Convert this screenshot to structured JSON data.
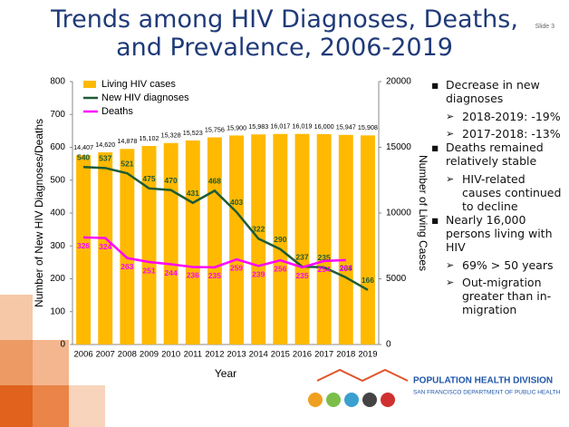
{
  "slide": {
    "title": "Trends among HIV Diagnoses, Deaths, and Prevalence, 2006-2019",
    "number": "Slide 3"
  },
  "chart_data": {
    "type": "combo",
    "x_label": "Year",
    "y_label": "Number of New HIV Diagnoses/Deaths",
    "y2_label": "Number of Living Cases",
    "categories": [
      "2006",
      "2007",
      "2008",
      "2009",
      "2010",
      "2011",
      "2012",
      "2013",
      "2014",
      "2015",
      "2016",
      "2017",
      "2018",
      "2019"
    ],
    "series": [
      {
        "name": "Living HIV cases",
        "type": "bar",
        "axis": "y2",
        "color": "#ffb900",
        "values": [
          14407,
          14620,
          14878,
          15102,
          15328,
          15523,
          15756,
          15900,
          15983,
          16017,
          16019,
          16000,
          15947,
          15908
        ],
        "value_labels": [
          "14,407",
          "14,620",
          "14,878",
          "15,102",
          "15,328",
          "15,523",
          "15,756",
          "15,900",
          "15,983",
          "16,017",
          "16,019",
          "16,000",
          "15,947",
          "15,908"
        ]
      },
      {
        "name": "New HIV diagnoses",
        "type": "line",
        "color": "#1d5b35",
        "values": [
          540,
          537,
          521,
          475,
          470,
          431,
          468,
          403,
          322,
          290,
          237,
          235,
          204,
          166
        ]
      },
      {
        "name": "Deaths",
        "type": "line",
        "color": "#ff00ff",
        "values": [
          326,
          324,
          263,
          251,
          244,
          236,
          235,
          259,
          239,
          256,
          235,
          254,
          257,
          null
        ]
      }
    ],
    "ylim": [
      0,
      800
    ],
    "yticks": [
      0,
      100,
      200,
      300,
      400,
      500,
      600,
      700,
      800
    ],
    "y2lim": [
      0,
      20000
    ],
    "y2ticks": [
      0,
      5000,
      10000,
      15000,
      20000
    ],
    "legend": "top-left"
  },
  "bullets": [
    {
      "text": "Decrease in new diagnoses",
      "sub": [
        "2018-2019: -19%",
        "2017-2018: -13%"
      ]
    },
    {
      "text": "Deaths remained relatively stable",
      "sub": [
        "HIV-related causes continued to decline"
      ]
    },
    {
      "text": "Nearly 16,000 persons living with HIV",
      "sub": [
        "69% > 50 years",
        "Out-migration greater than in-migration"
      ]
    }
  ],
  "logo": {
    "name": "POPULATION HEALTH DIVISION",
    "department": "SAN FRANCISCO DEPARTMENT OF PUBLIC HEALTH"
  }
}
